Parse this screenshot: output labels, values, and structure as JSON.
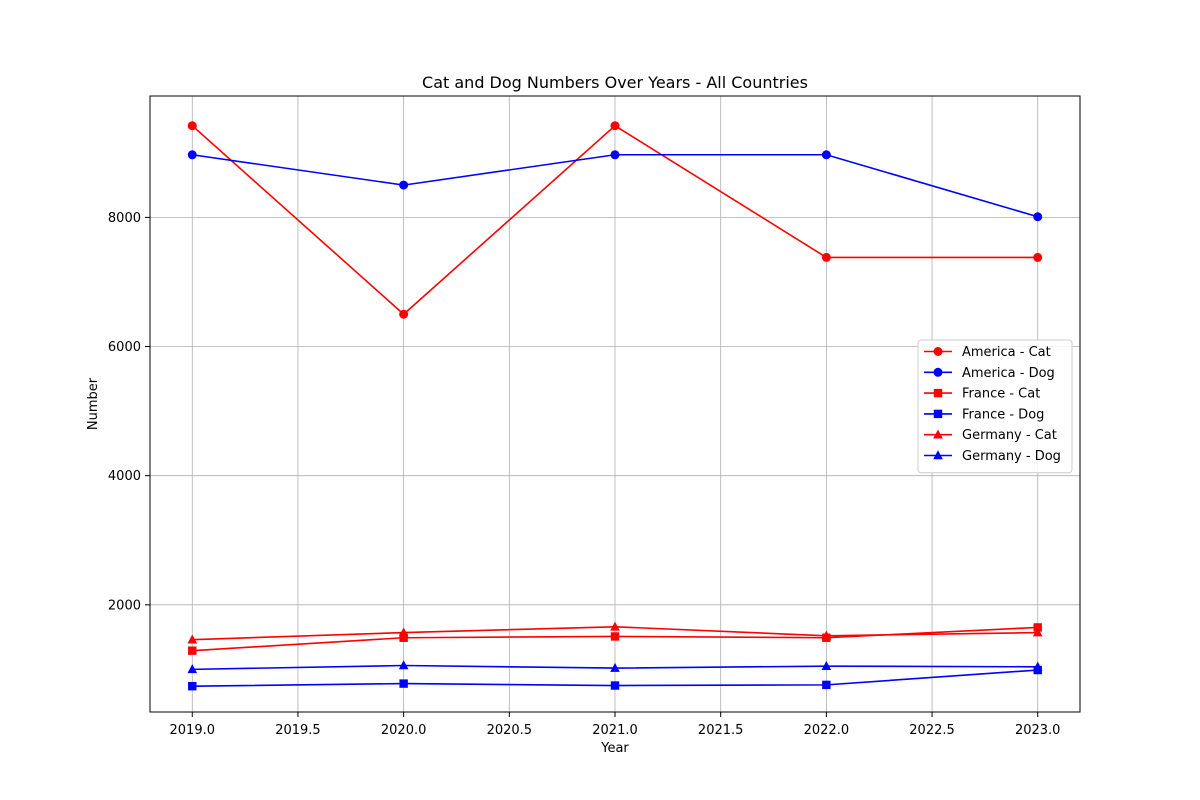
{
  "chart_data": {
    "type": "line",
    "title": "Cat and Dog Numbers Over Years - All Countries",
    "xlabel": "Year",
    "ylabel": "Number",
    "xlim": [
      2018.8,
      2023.2
    ],
    "ylim": [
      340,
      9880
    ],
    "xticks": [
      2019.0,
      2019.5,
      2020.0,
      2020.5,
      2021.0,
      2021.5,
      2022.0,
      2022.5,
      2023.0
    ],
    "xtick_labels": [
      "2019.0",
      "2019.5",
      "2020.0",
      "2020.5",
      "2021.0",
      "2021.5",
      "2022.0",
      "2022.5",
      "2023.0"
    ],
    "yticks": [
      2000,
      4000,
      6000,
      8000
    ],
    "ytick_labels": [
      "2000",
      "4000",
      "6000",
      "8000"
    ],
    "grid": true,
    "legend_position": "center-right",
    "x": [
      2019,
      2020,
      2021,
      2022,
      2023
    ],
    "series": [
      {
        "name": "America - Cat",
        "color": "#ff0000",
        "marker": "circle",
        "values": [
          9420,
          6500,
          9420,
          7380,
          7380
        ]
      },
      {
        "name": "America - Dog",
        "color": "#0000ff",
        "marker": "circle",
        "values": [
          8970,
          8500,
          8970,
          8970,
          8010
        ]
      },
      {
        "name": "France - Cat",
        "color": "#ff0000",
        "marker": "square",
        "values": [
          1290,
          1490,
          1510,
          1490,
          1650
        ]
      },
      {
        "name": "France - Dog",
        "color": "#0000ff",
        "marker": "square",
        "values": [
          740,
          780,
          750,
          760,
          990
        ]
      },
      {
        "name": "Germany - Cat",
        "color": "#ff0000",
        "marker": "triangle",
        "values": [
          1460,
          1570,
          1660,
          1520,
          1570
        ]
      },
      {
        "name": "Germany - Dog",
        "color": "#0000ff",
        "marker": "triangle",
        "values": [
          1000,
          1060,
          1020,
          1050,
          1040
        ]
      }
    ]
  }
}
